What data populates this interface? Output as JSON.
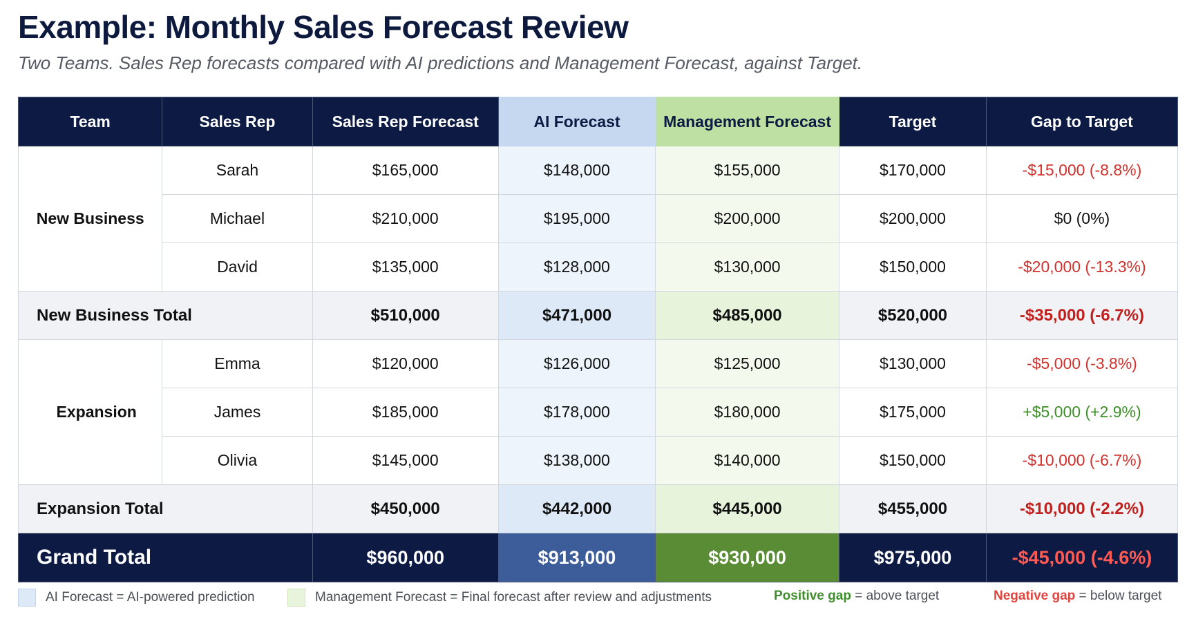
{
  "title": "Example: Monthly Sales Forecast Review",
  "subtitle": "Two Teams. Sales Rep forecasts compared with AI predictions and Management Forecast, against Target.",
  "table": {
    "headers": [
      "Team",
      "Sales Rep",
      "Sales Rep Forecast",
      "AI Forecast",
      "Management Forecast",
      "Target",
      "Gap to Target"
    ],
    "teams": [
      {
        "name": "New Business",
        "reps": [
          {
            "rep": "Sarah",
            "rep_forecast": "$165,000",
            "ai_forecast": "$148,000",
            "mgmt_forecast": "$155,000",
            "target": "$170,000",
            "gap": "-$15,000 (-8.8%)",
            "gap_sign": "negative"
          },
          {
            "rep": "Michael",
            "rep_forecast": "$210,000",
            "ai_forecast": "$195,000",
            "mgmt_forecast": "$200,000",
            "target": "$200,000",
            "gap": "$0 (0%)",
            "gap_sign": "zero"
          },
          {
            "rep": "David",
            "rep_forecast": "$135,000",
            "ai_forecast": "$128,000",
            "mgmt_forecast": "$130,000",
            "target": "$150,000",
            "gap": "-$20,000 (-13.3%)",
            "gap_sign": "negative"
          }
        ],
        "total": {
          "label": "New Business Total",
          "rep_forecast": "$510,000",
          "ai_forecast": "$471,000",
          "mgmt_forecast": "$485,000",
          "target": "$520,000",
          "gap": "-$35,000 (-6.7%)",
          "gap_sign": "negative"
        }
      },
      {
        "name": "Expansion",
        "reps": [
          {
            "rep": "Emma",
            "rep_forecast": "$120,000",
            "ai_forecast": "$126,000",
            "mgmt_forecast": "$125,000",
            "target": "$130,000",
            "gap": "-$5,000 (-3.8%)",
            "gap_sign": "negative"
          },
          {
            "rep": "James",
            "rep_forecast": "$185,000",
            "ai_forecast": "$178,000",
            "mgmt_forecast": "$180,000",
            "target": "$175,000",
            "gap": "+$5,000 (+2.9%)",
            "gap_sign": "positive"
          },
          {
            "rep": "Olivia",
            "rep_forecast": "$145,000",
            "ai_forecast": "$138,000",
            "mgmt_forecast": "$140,000",
            "target": "$150,000",
            "gap": "-$10,000 (-6.7%)",
            "gap_sign": "negative"
          }
        ],
        "total": {
          "label": "Expansion Total",
          "rep_forecast": "$450,000",
          "ai_forecast": "$442,000",
          "mgmt_forecast": "$445,000",
          "target": "$455,000",
          "gap": "-$10,000 (-2.2%)",
          "gap_sign": "negative"
        }
      }
    ],
    "grand_total": {
      "label": "Grand Total",
      "rep_forecast": "$960,000",
      "ai_forecast": "$913,000",
      "mgmt_forecast": "$930,000",
      "target": "$975,000",
      "gap": "-$45,000 (-4.6%)",
      "gap_sign": "negative"
    }
  },
  "legend": {
    "ai_text": "AI Forecast = AI-powered prediction",
    "mgmt_text": "Management Forecast = Final forecast after review and adjustments",
    "positive_term": "Positive gap",
    "positive_desc": " = above target",
    "negative_term": "Negative gap",
    "negative_desc": " = below target"
  },
  "colors": {
    "header_navy": "#0c1a44",
    "ai_accent": "#c5d8ef",
    "management_accent": "#bfe0a3",
    "positive": "#3e8e2b",
    "negative": "#d0312d"
  }
}
